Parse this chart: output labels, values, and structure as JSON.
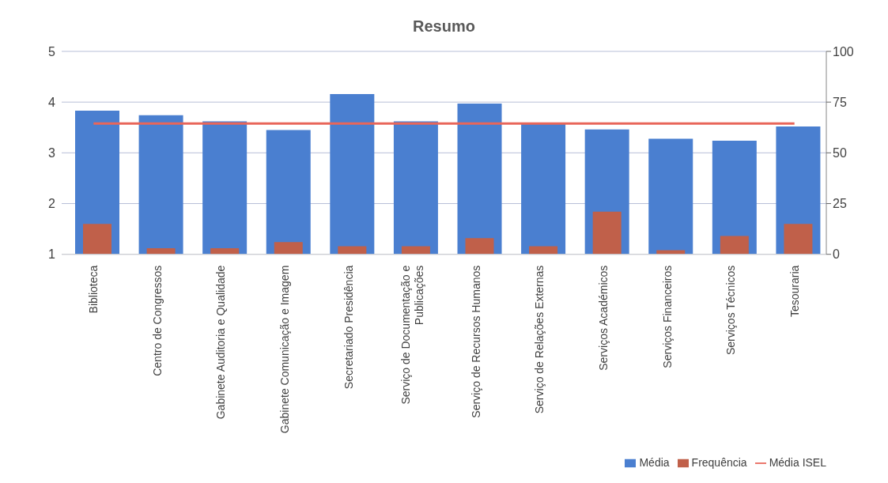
{
  "chart_data": {
    "type": "bar",
    "title": "Resumo",
    "categories": [
      "Biblioteca",
      "Centro de Congressos",
      "Gabinete Auditoria e Qualidade",
      "Gabinete Comunicação e Imagem",
      "Secretariado Presidência",
      "Serviço de Documentação e Publicações",
      "Serviço de Recursos Humanos",
      "Serviço de Relações Externas",
      "Serviços Académicos",
      "Serviços Financeiros",
      "Serviços Técnicos",
      "Tesouraria"
    ],
    "series": [
      {
        "name": "Média",
        "color": "#4a7fd0",
        "values": [
          3.83,
          3.74,
          3.62,
          3.45,
          4.16,
          3.62,
          3.97,
          3.59,
          3.46,
          3.28,
          3.24,
          3.52
        ]
      },
      {
        "name": "Frequência",
        "type": "bar",
        "axis": "y2",
        "color": "#c0604a",
        "values": [
          15,
          3,
          3,
          6,
          4,
          4,
          8,
          4,
          21,
          2,
          9,
          15
        ]
      },
      {
        "name": "Média ISEL",
        "type": "line",
        "color": "#e8665a",
        "values": [
          3.58,
          3.58,
          3.58,
          3.58,
          3.58,
          3.58,
          3.58,
          3.58,
          3.58,
          3.58,
          3.58,
          3.58
        ]
      }
    ],
    "ylim": [
      1,
      5
    ],
    "yticks": [
      1,
      2,
      3,
      4,
      5
    ],
    "y2lim": [
      0,
      100
    ],
    "y2ticks": [
      0,
      25,
      50,
      75,
      100
    ],
    "grid": "y",
    "legend": "bottom right"
  }
}
